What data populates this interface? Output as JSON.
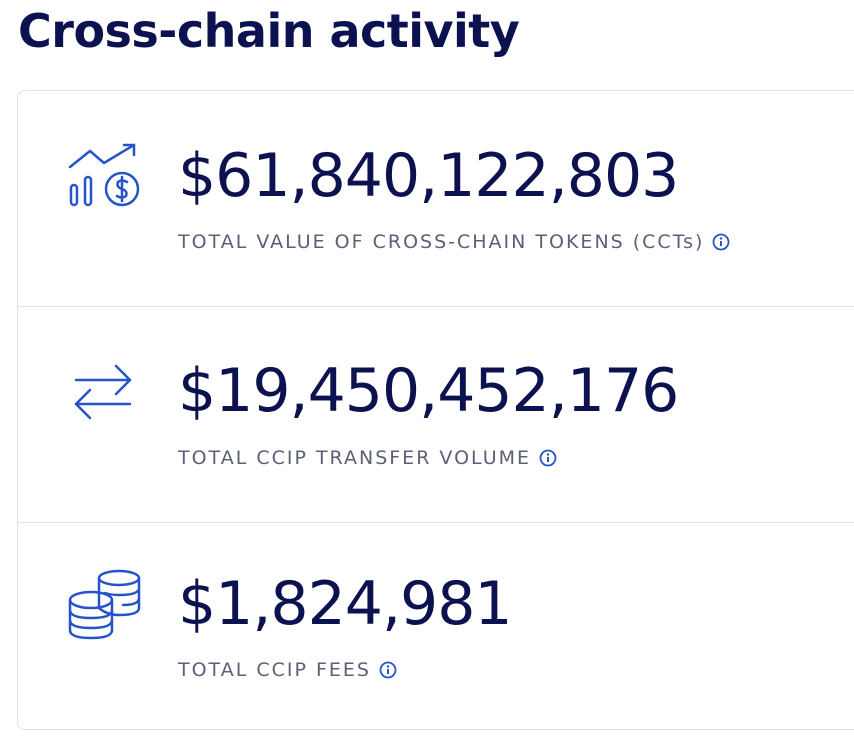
{
  "header": {
    "title": "Cross-chain activity"
  },
  "stats": [
    {
      "value": "$61,840,122,803",
      "label": "TOTAL VALUE OF CROSS-CHAIN TOKENS (CCTs)"
    },
    {
      "value": "$19,450,452,176",
      "label": "TOTAL CCIP TRANSFER VOLUME"
    },
    {
      "value": "$1,824,981",
      "label": "TOTAL CCIP FEES"
    }
  ]
}
